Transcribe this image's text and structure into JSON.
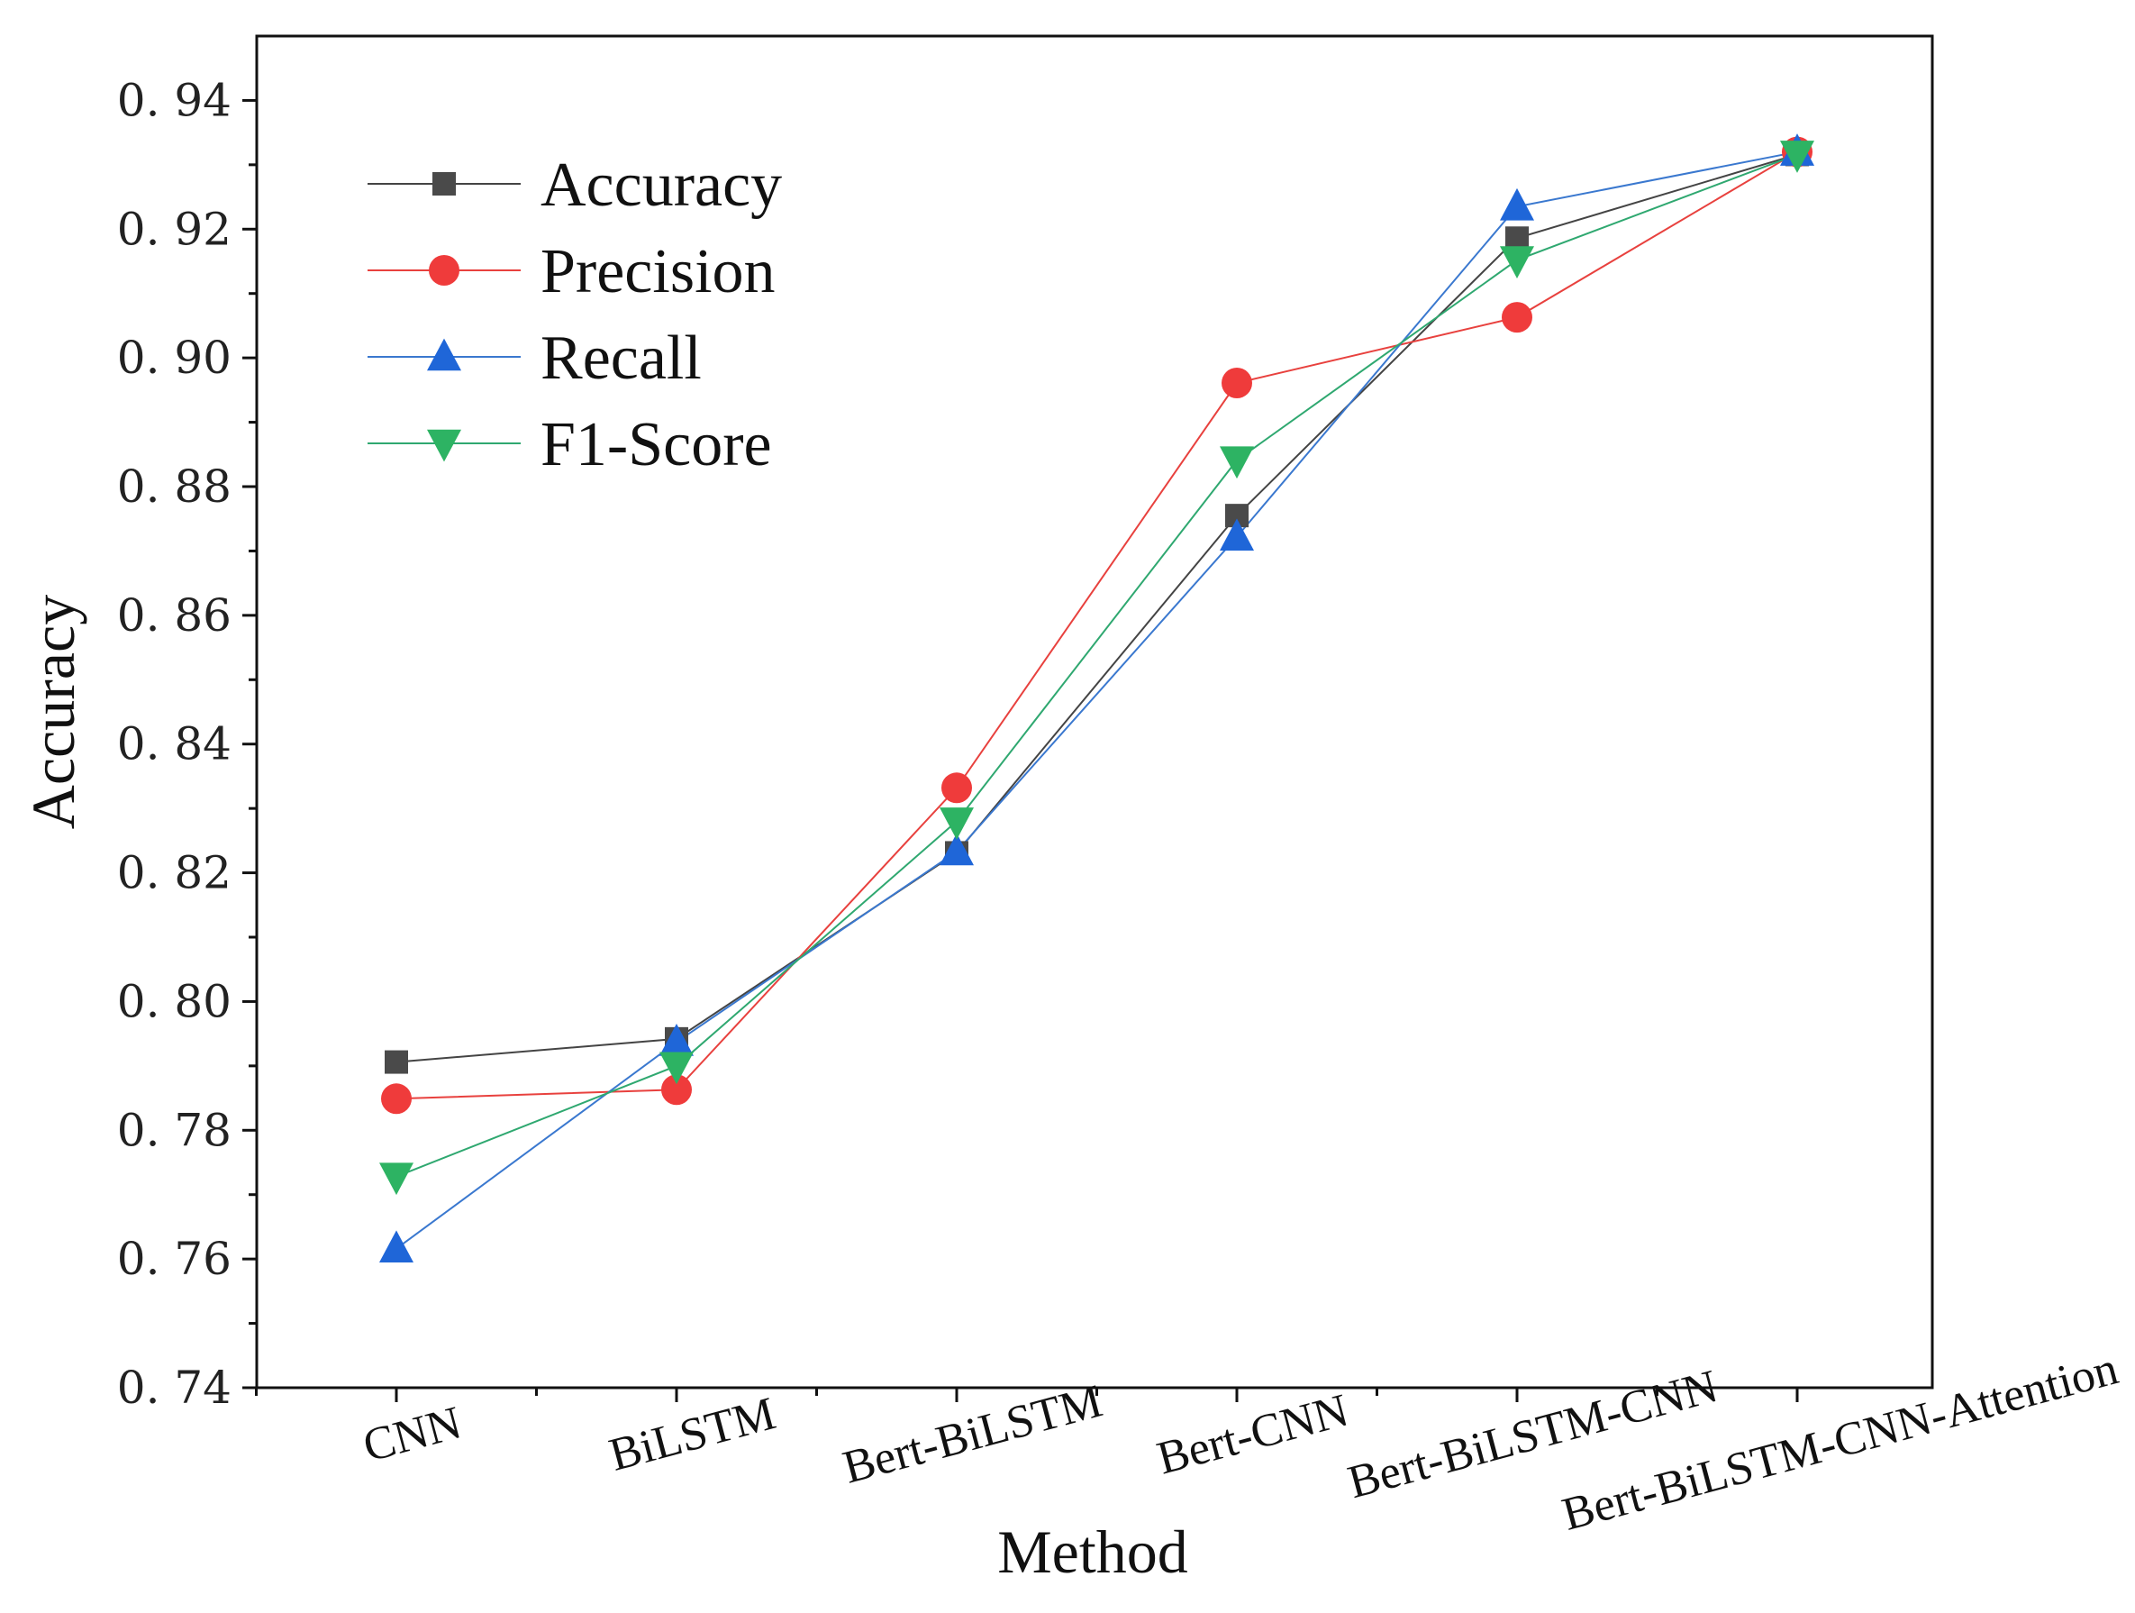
{
  "chart_data": {
    "type": "line",
    "title": "",
    "xlabel": "Method",
    "ylabel": "Accuracy",
    "categories": [
      "CNN",
      "BiLSTM",
      "Bert-BiLSTM",
      "Bert-CNN",
      "Bert-BiLSTM-CNN",
      "Bert-BiLSTM-CNN-Attention"
    ],
    "ylim": [
      0.74,
      0.95
    ],
    "yticks": [
      0.74,
      0.76,
      0.78,
      0.8,
      0.82,
      0.84,
      0.86,
      0.88,
      0.9,
      0.92,
      0.94
    ],
    "ytick_labels": [
      "0. 74",
      "0. 76",
      "0. 78",
      "0. 80",
      "0. 82",
      "0. 84",
      "0. 86",
      "0. 88",
      "0. 90",
      "0. 92",
      "0. 94"
    ],
    "legend_position": "top-left",
    "series": [
      {
        "name": "Accuracy",
        "marker": "square",
        "line_color": "#444444",
        "marker_color": "#4a4a4a",
        "values": [
          0.7906,
          0.7942,
          0.8231,
          0.8755,
          0.9186,
          0.9316
        ]
      },
      {
        "name": "Precision",
        "marker": "circle",
        "line_color": "#e8413e",
        "marker_color": "#ef3b3b",
        "values": [
          0.7849,
          0.7863,
          0.8332,
          0.8961,
          0.9063,
          0.932
        ]
      },
      {
        "name": "Recall",
        "marker": "triangle-up",
        "line_color": "#3a78cf",
        "marker_color": "#1f66d8",
        "values": [
          0.7616,
          0.7937,
          0.8233,
          0.8722,
          0.9235,
          0.932
        ]
      },
      {
        "name": "F1-Score",
        "marker": "triangle-down",
        "line_color": "#2fa870",
        "marker_color": "#2db363",
        "values": [
          0.7728,
          0.79,
          0.828,
          0.8841,
          0.9152,
          0.9316
        ]
      }
    ]
  }
}
